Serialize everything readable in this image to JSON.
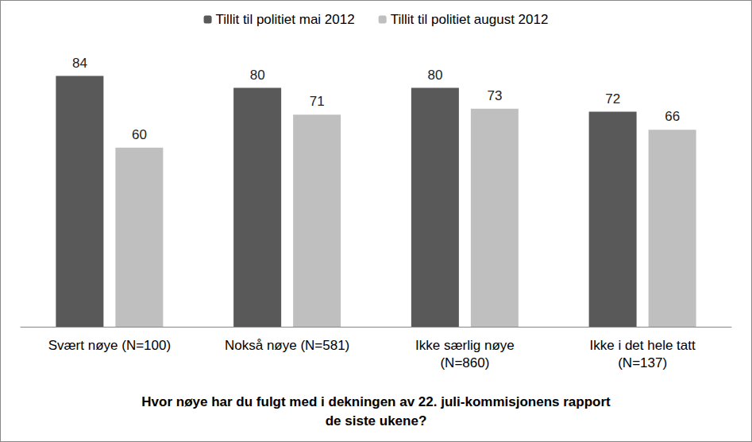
{
  "chart_data": {
    "type": "bar",
    "x_label": "Hvor nøye har du fulgt med i dekningen av 22. juli-kommisjonens rapport\nde siste ukene?",
    "categories": [
      "Svært nøye (N=100)",
      "Nokså nøye (N=581)",
      "Ikke særlig nøye\n(N=860)",
      "Ikke i det hele tatt\n(N=137)"
    ],
    "series": [
      {
        "name": "Tillit til politiet mai 2012",
        "color": "#595959",
        "values": [
          84,
          80,
          80,
          72
        ]
      },
      {
        "name": "Tillit til politiet august 2012",
        "color": "#bfbfbf",
        "values": [
          60,
          71,
          73,
          66
        ]
      }
    ],
    "ylim": [
      0,
      90
    ],
    "grid": false,
    "legend": "top",
    "data_labels": true,
    "tick_labels": "x"
  }
}
